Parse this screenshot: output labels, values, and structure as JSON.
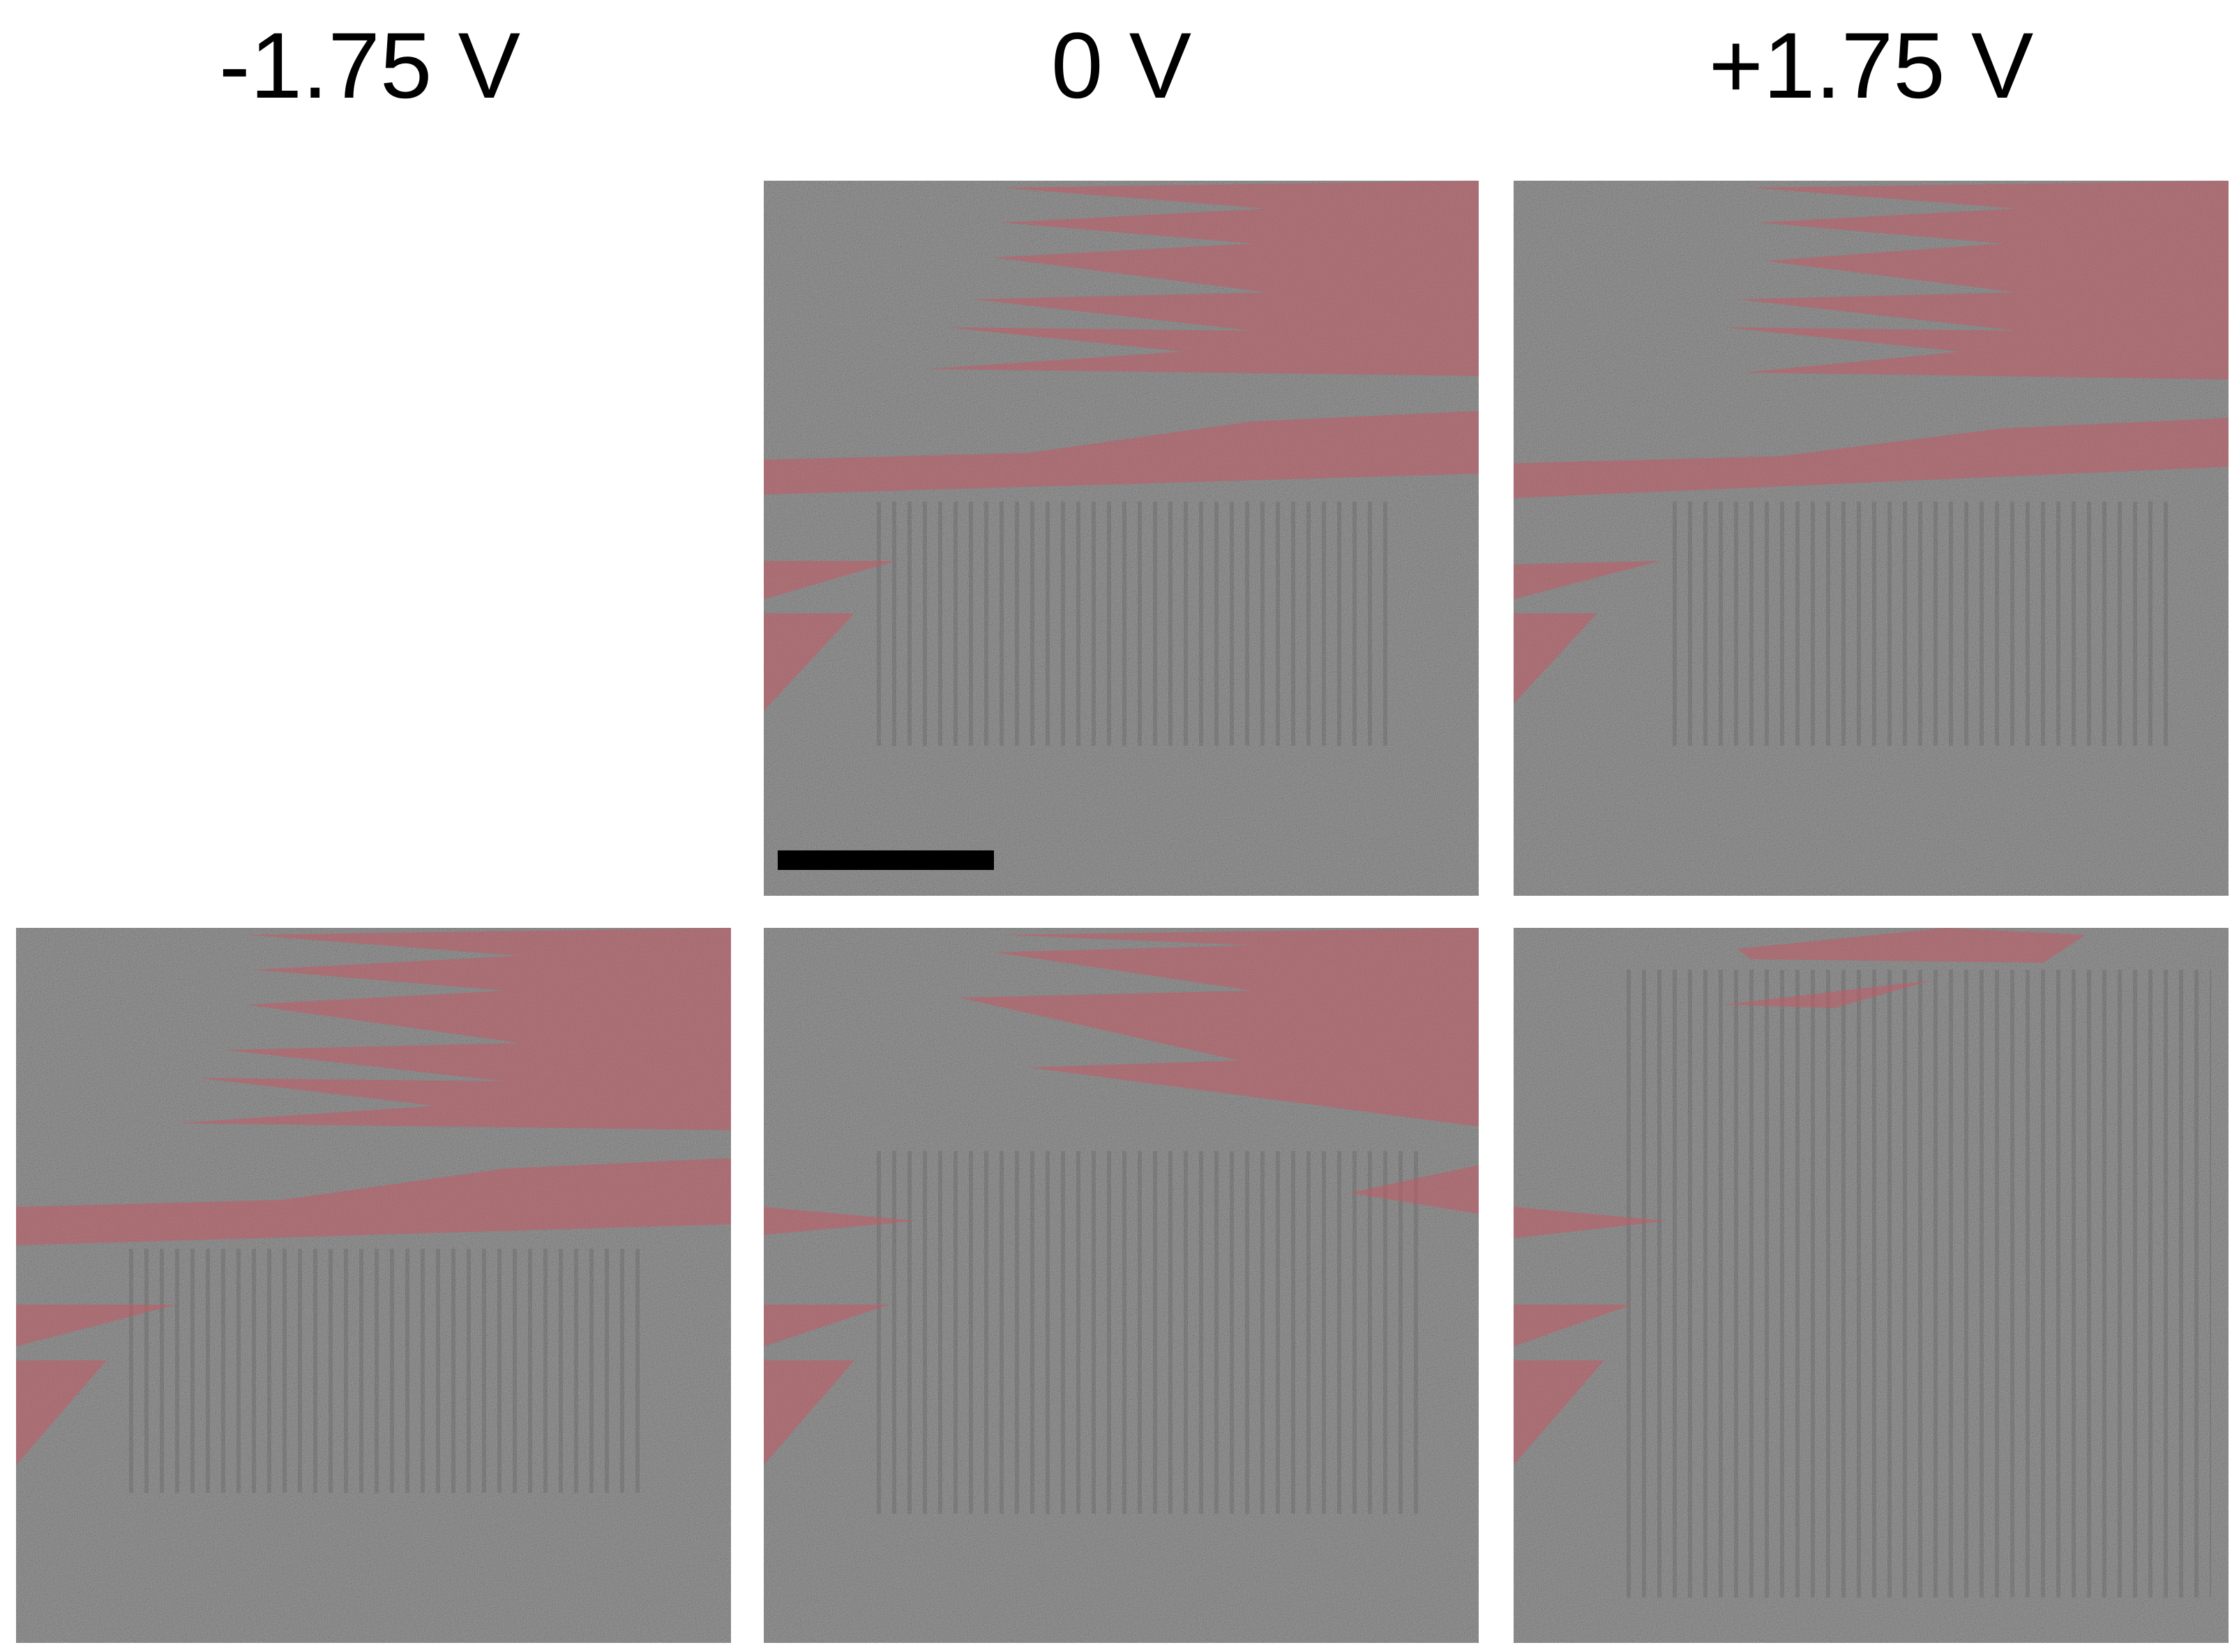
{
  "columns": {
    "neg": "-1.75 V",
    "zero": "0 V",
    "pos": "+1.75 V"
  },
  "colors": {
    "background": "#ffffff",
    "domain_tint": "#c45a64",
    "substrate_gray": "#9a9a9a",
    "scale_bar": "#000000"
  },
  "panels": [
    {
      "row": 1,
      "column": "0 V",
      "content": "micrograph with tinted domains"
    },
    {
      "row": 1,
      "column": "+1.75 V",
      "content": "micrograph with tinted domains"
    },
    {
      "row": 2,
      "column": "-1.75 V",
      "content": "micrograph with tinted domains"
    },
    {
      "row": 2,
      "column": "0 V",
      "content": "micrograph with tinted domains"
    },
    {
      "row": 2,
      "column": "+1.75 V",
      "content": "micrograph with tinted domains"
    }
  ]
}
